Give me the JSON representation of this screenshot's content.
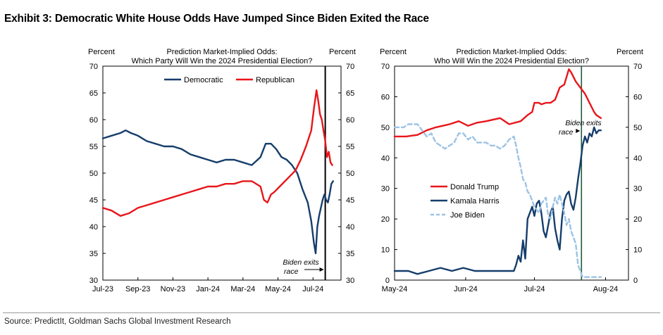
{
  "title": "Exhibit 3: Democratic White House Odds Have Jumped Since Biden Exited the Race",
  "source": "Source: PredictIt, Goldman Sachs Global Investment Research",
  "colors": {
    "democratic": "#163e6b",
    "republican": "#e8161b",
    "trump": "#e8161b",
    "harris": "#163e6b",
    "biden": "#9cc3e6"
  },
  "chart_data": [
    {
      "type": "line",
      "title": "Prediction Market-Implied Odds:\nWhich Party Will Win the 2024 Presidential Election?",
      "title_lines": [
        "Prediction Market-Implied Odds:",
        "Which Party Will Win the 2024 Presidential Election?"
      ],
      "ylabel_left": "Percent",
      "ylabel_right": "Percent",
      "ylim": [
        30,
        70
      ],
      "yticks": [
        30,
        35,
        40,
        45,
        50,
        55,
        60,
        65,
        70
      ],
      "xlim": [
        0,
        13.6
      ],
      "x_tick_labels": [
        "Jul-23",
        "Sep-23",
        "Nov-23",
        "Jan-24",
        "Mar-24",
        "May-24",
        "Jul-24"
      ],
      "x_tick_positions": [
        0,
        2,
        4,
        6,
        8,
        10,
        12
      ],
      "legend": "top-center",
      "annotation": {
        "lines": [
          "Biden exits",
          "race"
        ],
        "event_x": 12.7
      },
      "series": [
        {
          "name": "Democratic",
          "color": "#163e6b",
          "x": [
            0,
            0.5,
            1,
            1.3,
            1.6,
            2,
            2.5,
            3,
            3.5,
            4,
            4.5,
            5,
            5.5,
            6,
            6.5,
            7,
            7.5,
            8,
            8.5,
            9,
            9.3,
            9.6,
            9.9,
            10.2,
            10.5,
            10.8,
            11.1,
            11.4,
            11.7,
            11.9,
            12.05,
            12.15,
            12.25,
            12.35,
            12.45,
            12.55,
            12.65,
            12.75,
            12.85,
            12.95,
            13.05,
            13.15
          ],
          "y": [
            56.5,
            57,
            57.5,
            58,
            57.5,
            57,
            56,
            55.5,
            55,
            55,
            54.5,
            53.5,
            53,
            52.5,
            52,
            52.5,
            52.5,
            52,
            51.5,
            53,
            55.5,
            55.5,
            54.5,
            53,
            52.5,
            51.5,
            50,
            47,
            44.5,
            41,
            37,
            35,
            40,
            42,
            43.5,
            45,
            46,
            45,
            44.5,
            46,
            48,
            48.5
          ]
        },
        {
          "name": "Republican",
          "color": "#e8161b",
          "x": [
            0,
            0.5,
            1,
            1.5,
            2,
            2.5,
            3,
            3.5,
            4,
            4.5,
            5,
            5.5,
            6,
            6.5,
            7,
            7.5,
            8,
            8.5,
            9,
            9.2,
            9.4,
            9.6,
            9.8,
            10.1,
            10.4,
            10.7,
            11,
            11.3,
            11.6,
            11.9,
            12.05,
            12.2,
            12.3,
            12.4,
            12.5,
            12.6,
            12.7,
            12.8,
            12.9,
            13.0,
            13.1
          ],
          "y": [
            43.5,
            43,
            42,
            42.5,
            43.5,
            44,
            44.5,
            45,
            45.5,
            46,
            46.5,
            47,
            47.5,
            47.5,
            48,
            48,
            48.5,
            48.5,
            47.5,
            45,
            44.5,
            46,
            46.5,
            47.5,
            48.5,
            49.5,
            50.5,
            52.5,
            55,
            58,
            62,
            65.5,
            63.5,
            61,
            60,
            58,
            56,
            53,
            54,
            52,
            51.5
          ]
        }
      ]
    },
    {
      "type": "line",
      "title": "Prediction Market-Implied Odds:\nWho Will Win the 2024 Presidential Election?",
      "title_lines": [
        "Prediction Market-Implied Odds:",
        "Who Will Win the 2024 Presidential Election?"
      ],
      "ylabel_left": "Percent",
      "ylabel_right": "Percent",
      "ylim": [
        0,
        70
      ],
      "yticks": [
        0,
        10,
        20,
        30,
        40,
        50,
        60,
        70
      ],
      "xlim": [
        0,
        102
      ],
      "x_tick_labels": [
        "May-24",
        "Jun-24",
        "Jul-24",
        "Aug-24"
      ],
      "x_tick_positions": [
        0,
        31,
        61,
        92
      ],
      "legend": "middle-left",
      "annotation": {
        "lines": [
          "Biden exits",
          "race"
        ],
        "event_x": 81.5
      },
      "series": [
        {
          "name": "Donald Trump",
          "color": "#e8161b",
          "dashed": false,
          "x": [
            0,
            5,
            10,
            14,
            18,
            24,
            28,
            32,
            36,
            40,
            46,
            50,
            55,
            58,
            60,
            61,
            63,
            64,
            66,
            68,
            70,
            72,
            74,
            76,
            77,
            79,
            81,
            83,
            85,
            87,
            88,
            89,
            90
          ],
          "y": [
            47,
            47,
            47.5,
            49,
            50,
            51,
            52,
            50.5,
            51.5,
            52,
            53,
            51,
            52,
            54,
            55,
            58,
            58,
            57.5,
            58,
            58,
            59,
            63,
            64,
            69,
            68,
            65,
            63,
            61,
            58,
            55,
            54,
            53.5,
            53
          ]
        },
        {
          "name": "Kamala Harris",
          "color": "#163e6b",
          "dashed": false,
          "x": [
            0,
            3,
            6,
            10,
            15,
            20,
            25,
            30,
            35,
            40,
            45,
            48,
            50,
            52,
            53,
            54,
            55,
            56,
            57,
            58,
            60,
            61,
            62,
            63,
            64,
            65,
            66,
            67,
            68,
            69,
            70,
            71,
            72,
            73,
            74,
            75,
            76,
            77,
            78,
            79,
            80,
            81,
            82,
            83,
            84,
            85,
            86,
            87,
            88,
            89,
            90
          ],
          "y": [
            3,
            3,
            3,
            2,
            3,
            4,
            3,
            4,
            3,
            3,
            3,
            3,
            3,
            3,
            5,
            8,
            6,
            13,
            7,
            20,
            24,
            21,
            25,
            26,
            22,
            16,
            14,
            18,
            22,
            24,
            17,
            13,
            10,
            20,
            26,
            28,
            29,
            25,
            23,
            27,
            33,
            38,
            44,
            47,
            45,
            48,
            47,
            50,
            48,
            49,
            49
          ]
        },
        {
          "name": "Joe Biden",
          "color": "#9cc3e6",
          "dashed": true,
          "x": [
            0,
            2,
            4,
            6,
            8,
            10,
            12,
            14,
            16,
            18,
            20,
            22,
            24,
            26,
            28,
            30,
            32,
            34,
            36,
            38,
            40,
            42,
            44,
            46,
            48,
            50,
            52,
            53,
            54,
            55,
            56,
            57,
            58,
            59,
            60,
            61,
            62,
            63,
            64,
            65,
            66,
            67,
            68,
            69,
            70,
            71,
            72,
            73,
            74,
            75,
            76,
            77,
            78,
            79,
            80,
            81,
            82,
            84,
            86,
            88,
            90
          ],
          "y": [
            50,
            50,
            50,
            51,
            51,
            51,
            49,
            47,
            48,
            45,
            44,
            43,
            44,
            45,
            48,
            48,
            46,
            47,
            45,
            45,
            45,
            44,
            44,
            43,
            44,
            46,
            47,
            44,
            40,
            37,
            33,
            32,
            29,
            28,
            26,
            24,
            23,
            22,
            25,
            26,
            27,
            21,
            20,
            24,
            27,
            25,
            28,
            25,
            22,
            18,
            20,
            16,
            14,
            12,
            5,
            3,
            1,
            1,
            1,
            1,
            1
          ]
        }
      ]
    }
  ]
}
